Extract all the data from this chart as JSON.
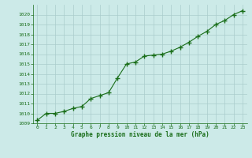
{
  "x": [
    0,
    1,
    2,
    3,
    4,
    5,
    6,
    7,
    8,
    9,
    10,
    11,
    12,
    13,
    14,
    15,
    16,
    17,
    18,
    19,
    20,
    21,
    22,
    23
  ],
  "y": [
    1009.3,
    1010.0,
    1010.0,
    1010.2,
    1010.5,
    1010.7,
    1011.5,
    1011.8,
    1012.1,
    1013.6,
    1015.0,
    1015.2,
    1015.8,
    1015.9,
    1016.0,
    1016.3,
    1016.7,
    1017.2,
    1017.8,
    1018.3,
    1019.0,
    1019.4,
    1020.0,
    1020.4
  ],
  "line_color": "#1a6e1a",
  "marker": "+",
  "bg_color": "#cceae8",
  "grid_color": "#aacccc",
  "xlabel": "Graphe pression niveau de la mer (hPa)",
  "xlabel_color": "#1a6e1a",
  "tick_color": "#1a6e1a",
  "ylim_min": 1009,
  "ylim_max": 1021,
  "yticks": [
    1009,
    1010,
    1011,
    1012,
    1013,
    1014,
    1015,
    1016,
    1017,
    1018,
    1019,
    1020
  ],
  "xticks": [
    0,
    1,
    2,
    3,
    4,
    5,
    6,
    7,
    8,
    9,
    10,
    11,
    12,
    13,
    14,
    15,
    16,
    17,
    18,
    19,
    20,
    21,
    22,
    23
  ],
  "linewidth": 0.8,
  "markersize": 4,
  "markeredgewidth": 1.0
}
